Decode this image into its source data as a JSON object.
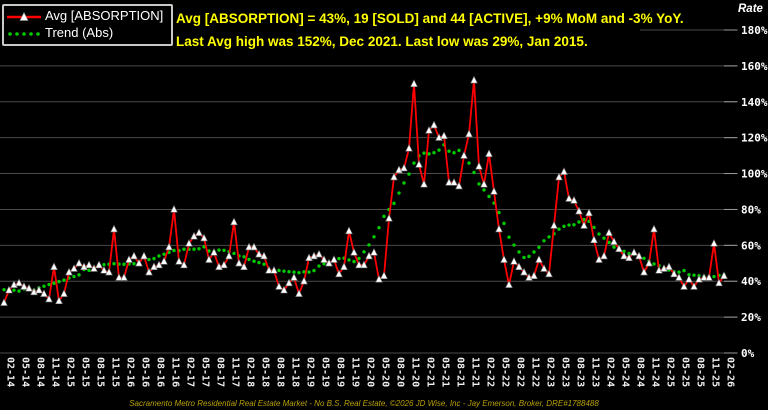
{
  "header": {
    "line1": "Avg [ABSORPTION] = 43%, 19 [SOLD] and 44 [ACTIVE], +9% MoM and -3% YoY.",
    "line2": "Last Avg high was 152%, Dec 2021. Last low was 29%, Jan 2015."
  },
  "legend": {
    "items": [
      {
        "label": "Avg [ABSORPTION]"
      },
      {
        "label": "Trend (Abs)"
      }
    ]
  },
  "y_axis": {
    "title": "Rate"
  },
  "footer": {
    "text": "Sacramento Metro Residential Real Estate Market - No B.S. Real Estate, ©2026 JD Wise, Inc - Jay Emerson, Broker, DRE#1788488"
  },
  "colors": {
    "background": "#000000",
    "avg_series": "#ff0000",
    "trend_series": "#00cc00",
    "marker_fill": "#ffffff",
    "title_yellow": "#ffff00",
    "footer_yellow": "#b8a005",
    "axis_text": "#ffffff",
    "gridline": "#4a4a4a",
    "legend_border": "#c9c9c9"
  },
  "chart_data": {
    "type": "line",
    "title": "Avg [ABSORPTION] = 43%, 19 [SOLD] and 44 [ACTIVE], +9% MoM and -3% YoY. Last Avg high was 152%, Dec 2021. Last low was 29%, Jan 2015.",
    "x_start": "2014-02",
    "x_end": "2026-02",
    "x_interval": "monthly",
    "x_tick_labels": [
      "02-14",
      "05-14",
      "08-14",
      "11-14",
      "02-15",
      "05-15",
      "08-15",
      "11-15",
      "02-16",
      "05-16",
      "08-16",
      "11-16",
      "02-17",
      "05-17",
      "08-17",
      "11-17",
      "02-18",
      "05-18",
      "08-18",
      "11-18",
      "02-19",
      "05-19",
      "08-19",
      "11-19",
      "02-20",
      "05-20",
      "08-20",
      "11-20",
      "02-21",
      "05-21",
      "08-21",
      "11-21",
      "02-22",
      "05-22",
      "08-22",
      "11-22",
      "02-23",
      "05-23",
      "08-23",
      "11-23",
      "02-24",
      "05-24",
      "08-24",
      "11-24",
      "02-25",
      "05-25",
      "08-25",
      "11-25",
      "02-26"
    ],
    "ylabel": "Rate",
    "ylim": [
      0,
      180
    ],
    "y_tick_interval": 20,
    "y_tick_labels": [
      "0%",
      "20%",
      "40%",
      "60%",
      "80%",
      "100%",
      "120%",
      "140%",
      "160%",
      "180%"
    ],
    "grid": "horizontal-only",
    "legend_position": "top-left",
    "series": [
      {
        "name": "Avg [ABSORPTION]",
        "style": "solid-line",
        "color": "#ff0000",
        "marker": "white-up-triangle",
        "values": [
          28,
          35,
          38,
          39,
          37,
          36,
          34,
          35,
          33,
          30,
          48,
          29,
          33,
          45,
          47,
          50,
          48,
          49,
          47,
          49,
          46,
          45,
          69,
          42,
          42,
          52,
          54,
          50,
          54,
          45,
          48,
          49,
          51,
          59,
          80,
          51,
          49,
          61,
          65,
          67,
          64,
          52,
          56,
          48,
          49,
          54,
          73,
          50,
          48,
          59,
          59,
          55,
          54,
          46,
          46,
          37,
          35,
          39,
          42,
          33,
          40,
          53,
          54,
          55,
          52,
          50,
          52,
          44,
          48,
          68,
          56,
          49,
          49,
          54,
          56,
          41,
          43,
          75,
          98,
          102,
          103,
          114,
          150,
          105,
          94,
          124,
          127,
          120,
          121,
          95,
          95,
          93,
          110,
          122,
          152,
          104,
          94,
          111,
          90,
          69,
          52,
          38,
          51,
          48,
          45,
          42,
          43,
          52,
          47,
          44,
          71,
          98,
          101,
          86,
          85,
          79,
          71,
          78,
          63,
          52,
          54,
          67,
          62,
          58,
          54,
          53,
          56,
          54,
          45,
          50,
          69,
          46,
          47,
          48,
          44,
          42,
          37,
          41,
          37,
          41,
          42,
          42,
          61,
          39,
          43
        ]
      },
      {
        "name": "Trend (Abs)",
        "style": "dotted-line",
        "color": "#00cc00",
        "derivation": "centered 13-month moving average of Avg [ABSORPTION] series"
      }
    ],
    "annotations": {
      "current_avg": "43%",
      "sold": 19,
      "active": 44,
      "mom": "+9%",
      "yoy": "-3%",
      "last_high": "152%, Dec 2021",
      "last_low": "29%, Jan 2015"
    }
  }
}
